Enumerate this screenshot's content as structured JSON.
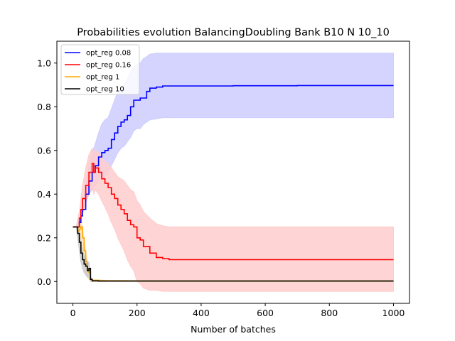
{
  "chart_data": {
    "type": "line",
    "title": "Probabilities evolution BalancingDoubling Bank B10 N 10_10",
    "xlabel": "Number of batches",
    "ylabel": "",
    "xlim": [
      -50,
      1050
    ],
    "ylim": [
      -0.1,
      1.1
    ],
    "xticks": [
      0,
      200,
      400,
      600,
      800,
      1000
    ],
    "yticks": [
      0.0,
      0.2,
      0.4,
      0.6,
      0.8,
      1.0
    ],
    "grid": false,
    "legend_position": "top-left",
    "series": [
      {
        "name": "opt_reg 0.08",
        "color": "#0000ff",
        "band_color": "#ccccff",
        "x": [
          0,
          10,
          20,
          25,
          30,
          40,
          50,
          60,
          70,
          80,
          90,
          100,
          110,
          120,
          130,
          140,
          150,
          160,
          170,
          180,
          190,
          200,
          210,
          220,
          230,
          240,
          260,
          280,
          300,
          350,
          400,
          500,
          600,
          700,
          800,
          900,
          1000
        ],
        "y": [
          0.25,
          0.25,
          0.27,
          0.3,
          0.33,
          0.4,
          0.46,
          0.5,
          0.53,
          0.57,
          0.59,
          0.6,
          0.61,
          0.65,
          0.68,
          0.71,
          0.73,
          0.74,
          0.76,
          0.8,
          0.83,
          0.83,
          0.84,
          0.84,
          0.87,
          0.885,
          0.89,
          0.895,
          0.895,
          0.895,
          0.895,
          0.896,
          0.896,
          0.897,
          0.897,
          0.897,
          0.897
        ],
        "lower": [
          0.25,
          0.25,
          0.27,
          0.29,
          0.31,
          0.36,
          0.4,
          0.42,
          0.44,
          0.46,
          0.47,
          0.48,
          0.5,
          0.53,
          0.56,
          0.59,
          0.61,
          0.62,
          0.64,
          0.66,
          0.69,
          0.7,
          0.7,
          0.72,
          0.73,
          0.74,
          0.745,
          0.75,
          0.75,
          0.75,
          0.75,
          0.75,
          0.75,
          0.75,
          0.75,
          0.75,
          0.75
        ],
        "upper": [
          0.25,
          0.25,
          0.28,
          0.31,
          0.35,
          0.45,
          0.53,
          0.59,
          0.63,
          0.68,
          0.72,
          0.74,
          0.75,
          0.79,
          0.83,
          0.87,
          0.89,
          0.9,
          0.93,
          0.96,
          0.98,
          0.99,
          1.0,
          1.02,
          1.03,
          1.04,
          1.045,
          1.045,
          1.045,
          1.045,
          1.045,
          1.045,
          1.045,
          1.045,
          1.045,
          1.045,
          1.045
        ]
      },
      {
        "name": "opt_reg 0.16",
        "color": "#ff0000",
        "band_color": "#ffcccc",
        "x": [
          0,
          10,
          20,
          25,
          30,
          40,
          50,
          60,
          65,
          70,
          80,
          90,
          100,
          110,
          120,
          130,
          140,
          150,
          160,
          170,
          180,
          190,
          200,
          210,
          220,
          240,
          260,
          280,
          300,
          350,
          400,
          500,
          600,
          700,
          800,
          900,
          1000
        ],
        "y": [
          0.25,
          0.25,
          0.29,
          0.33,
          0.38,
          0.44,
          0.5,
          0.54,
          0.5,
          0.52,
          0.5,
          0.47,
          0.45,
          0.43,
          0.4,
          0.38,
          0.35,
          0.33,
          0.31,
          0.28,
          0.26,
          0.25,
          0.2,
          0.19,
          0.16,
          0.13,
          0.11,
          0.105,
          0.1,
          0.1,
          0.1,
          0.1,
          0.1,
          0.1,
          0.1,
          0.1,
          0.1
        ],
        "lower": [
          0.25,
          0.25,
          0.26,
          0.29,
          0.32,
          0.36,
          0.4,
          0.44,
          0.4,
          0.42,
          0.4,
          0.37,
          0.34,
          0.31,
          0.27,
          0.24,
          0.2,
          0.17,
          0.14,
          0.1,
          0.07,
          0.05,
          0.0,
          -0.01,
          -0.03,
          -0.04,
          -0.04,
          -0.045,
          -0.045,
          -0.045,
          -0.045,
          -0.045,
          -0.045,
          -0.045,
          -0.045,
          -0.045,
          -0.045
        ],
        "upper": [
          0.25,
          0.25,
          0.32,
          0.38,
          0.44,
          0.52,
          0.58,
          0.61,
          0.59,
          0.6,
          0.59,
          0.57,
          0.55,
          0.54,
          0.52,
          0.5,
          0.48,
          0.47,
          0.46,
          0.44,
          0.42,
          0.41,
          0.37,
          0.35,
          0.32,
          0.29,
          0.265,
          0.255,
          0.25,
          0.25,
          0.25,
          0.25,
          0.25,
          0.25,
          0.25,
          0.25,
          0.25
        ]
      },
      {
        "name": "opt_reg 1",
        "color": "#ffa500",
        "band_color": "#ffe4b3",
        "x": [
          0,
          10,
          15,
          20,
          25,
          30,
          35,
          40,
          45,
          50,
          55,
          60,
          80,
          100,
          200,
          400,
          600,
          800,
          1000
        ],
        "y": [
          0.25,
          0.25,
          0.23,
          0.24,
          0.25,
          0.2,
          0.14,
          0.09,
          0.06,
          0.04,
          0.01,
          0.005,
          0.004,
          0.003,
          0.002,
          0.002,
          0.002,
          0.002,
          0.002
        ],
        "lower": [
          0.25,
          0.25,
          0.21,
          0.2,
          0.2,
          0.14,
          0.08,
          0.04,
          0.02,
          0.01,
          0.0,
          0.0,
          0.0,
          0.0,
          0.0,
          0.0,
          0.0,
          0.0,
          0.0
        ],
        "upper": [
          0.25,
          0.25,
          0.25,
          0.27,
          0.28,
          0.25,
          0.19,
          0.13,
          0.1,
          0.07,
          0.03,
          0.01,
          0.008,
          0.006,
          0.004,
          0.004,
          0.004,
          0.004,
          0.004
        ]
      },
      {
        "name": "opt_reg 10",
        "color": "#000000",
        "band_color": "#cccccc",
        "x": [
          0,
          10,
          15,
          20,
          25,
          30,
          35,
          40,
          45,
          50,
          55,
          60,
          80,
          100,
          200,
          400,
          600,
          800,
          1000
        ],
        "y": [
          0.25,
          0.25,
          0.22,
          0.18,
          0.13,
          0.1,
          0.08,
          0.07,
          0.05,
          0.06,
          0.01,
          0.003,
          0.002,
          0.002,
          0.002,
          0.002,
          0.002,
          0.002,
          0.002
        ],
        "lower": [
          0.25,
          0.25,
          0.2,
          0.14,
          0.09,
          0.06,
          0.04,
          0.03,
          0.02,
          0.02,
          0.0,
          0.0,
          0.0,
          0.0,
          0.0,
          0.0,
          0.0,
          0.0,
          0.0
        ],
        "upper": [
          0.25,
          0.25,
          0.24,
          0.22,
          0.17,
          0.14,
          0.12,
          0.11,
          0.08,
          0.09,
          0.02,
          0.006,
          0.004,
          0.004,
          0.004,
          0.004,
          0.004,
          0.004,
          0.004
        ]
      }
    ]
  }
}
